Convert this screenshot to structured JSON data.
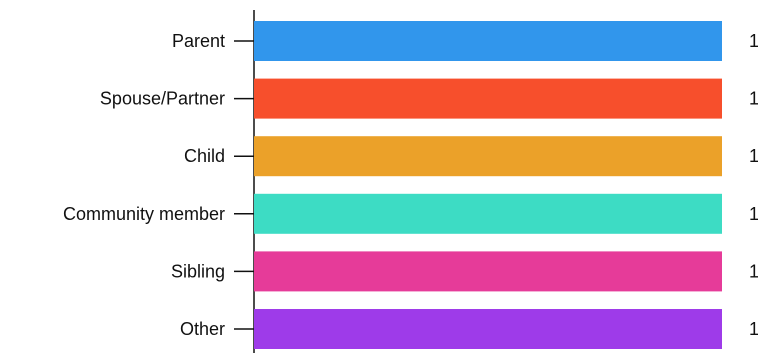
{
  "chart_data": {
    "type": "bar",
    "orientation": "horizontal",
    "categories": [
      "Parent",
      "Spouse/Partner",
      "Child",
      "Community member",
      "Sibling",
      "Other"
    ],
    "values": [
      1,
      1,
      1,
      1,
      1,
      1
    ],
    "colors": [
      "#3196ec",
      "#f74f2c",
      "#eba129",
      "#3ddcc4",
      "#e63b99",
      "#9e3be9"
    ],
    "xlim": [
      0,
      1
    ],
    "grid": false,
    "legend": "none"
  }
}
